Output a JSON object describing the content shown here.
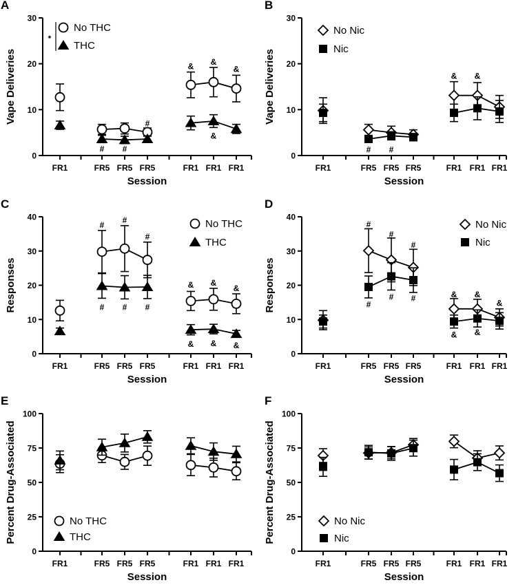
{
  "figure": {
    "colors": {
      "line": "#000000",
      "open_fill": "#ffffff",
      "filled": "#000000"
    }
  },
  "chart_data": [
    {
      "panel": "A",
      "type": "line",
      "ylabel": "Vape Deliveries",
      "xlabel": "Session",
      "categories": [
        "FR1",
        "FR5",
        "FR5",
        "FR5",
        "FR1",
        "FR1",
        "FR1"
      ],
      "ylim": [
        0,
        30
      ],
      "yticks": [
        0,
        10,
        20,
        30
      ],
      "legend": {
        "position": "top-left",
        "bracket_annotation": "*"
      },
      "series": [
        {
          "name": "No THC",
          "marker": "open-circle",
          "values": [
            12.7,
            5.7,
            5.9,
            5.1,
            15.4,
            16.0,
            14.6
          ],
          "errors": [
            2.9,
            1.1,
            1.2,
            0.9,
            2.8,
            3.2,
            2.9
          ]
        },
        {
          "name": "THC",
          "marker": "filled-triangle",
          "values": [
            6.6,
            3.6,
            3.4,
            3.6,
            7.1,
            7.5,
            5.8
          ],
          "errors": [
            0.9,
            0.8,
            0.8,
            0.7,
            1.5,
            1.4,
            1.0
          ]
        }
      ],
      "annotations": [
        {
          "text": "#",
          "index": 3,
          "y": 7.0
        },
        {
          "text": "#",
          "index": 1,
          "y": 1.4
        },
        {
          "text": "#",
          "index": 2,
          "y": 1.4
        },
        {
          "text": "&",
          "index": 4,
          "y": 19.4
        },
        {
          "text": "&",
          "index": 5,
          "y": 20.4
        },
        {
          "text": "&",
          "index": 6,
          "y": 18.8
        },
        {
          "text": "&",
          "index": 5,
          "y": 4.3
        }
      ]
    },
    {
      "panel": "B",
      "type": "line",
      "ylabel": "Vape Deliveries",
      "xlabel": "Session",
      "categories": [
        "FR1",
        "FR5",
        "FR5",
        "FR5",
        "FR1",
        "FR1",
        "FR1"
      ],
      "ylim": [
        0,
        30
      ],
      "yticks": [
        0,
        10,
        20,
        30
      ],
      "legend": {
        "position": "top-left"
      },
      "series": [
        {
          "name": "No Nic",
          "marker": "open-diamond",
          "values": [
            9.8,
            5.6,
            5.0,
            4.6,
            13.1,
            13.1,
            10.6
          ],
          "errors": [
            2.8,
            1.2,
            1.4,
            1.0,
            3.0,
            2.8,
            2.5
          ]
        },
        {
          "name": "Nic",
          "marker": "filled-square",
          "values": [
            9.3,
            3.6,
            4.3,
            4.0,
            9.3,
            10.3,
            9.6
          ],
          "errors": [
            1.9,
            0.7,
            0.9,
            0.8,
            1.9,
            2.5,
            2.4
          ]
        }
      ],
      "annotations": [
        {
          "text": "#",
          "index": 1,
          "y": 1.3
        },
        {
          "text": "#",
          "index": 2,
          "y": 1.3
        },
        {
          "text": "&",
          "index": 4,
          "y": 17.3
        },
        {
          "text": "&",
          "index": 5,
          "y": 17.3
        }
      ]
    },
    {
      "panel": "C",
      "type": "line",
      "ylabel": "Responses",
      "xlabel": "Session",
      "categories": [
        "FR1",
        "FR5",
        "FR5",
        "FR5",
        "FR1",
        "FR1",
        "FR1"
      ],
      "ylim": [
        0,
        40
      ],
      "yticks": [
        0,
        10,
        20,
        30,
        40
      ],
      "legend": {
        "position": "top-right"
      },
      "series": [
        {
          "name": "No THC",
          "marker": "open-circle",
          "values": [
            12.6,
            29.8,
            30.7,
            27.4,
            15.4,
            15.9,
            14.6
          ],
          "errors": [
            3.0,
            6.2,
            6.7,
            5.2,
            2.8,
            3.2,
            2.9
          ]
        },
        {
          "name": "THC",
          "marker": "filled-triangle",
          "values": [
            6.6,
            19.8,
            19.4,
            19.5,
            7.0,
            7.2,
            5.8
          ],
          "errors": [
            0.9,
            3.6,
            3.4,
            3.4,
            1.5,
            1.4,
            1.0
          ]
        }
      ],
      "annotations": [
        {
          "text": "#",
          "index": 1,
          "y": 37.6
        },
        {
          "text": "#",
          "index": 2,
          "y": 39.0
        },
        {
          "text": "#",
          "index": 3,
          "y": 34.2
        },
        {
          "text": "#",
          "index": 1,
          "y": 13.6
        },
        {
          "text": "#",
          "index": 2,
          "y": 13.6
        },
        {
          "text": "#",
          "index": 3,
          "y": 13.6
        },
        {
          "text": "&",
          "index": 4,
          "y": 20.1
        },
        {
          "text": "&",
          "index": 5,
          "y": 20.7
        },
        {
          "text": "&",
          "index": 6,
          "y": 19.1
        },
        {
          "text": "&",
          "index": 4,
          "y": 2.8
        },
        {
          "text": "&",
          "index": 5,
          "y": 3.0
        },
        {
          "text": "&",
          "index": 6,
          "y": 2.4
        }
      ]
    },
    {
      "panel": "D",
      "type": "line",
      "ylabel": "Responses",
      "xlabel": "Session",
      "categories": [
        "FR1",
        "FR5",
        "FR5",
        "FR5",
        "FR1",
        "FR1",
        "FR1"
      ],
      "ylim": [
        0,
        40
      ],
      "yticks": [
        0,
        10,
        20,
        30,
        40
      ],
      "legend": {
        "position": "top-right"
      },
      "series": [
        {
          "name": "No Nic",
          "marker": "open-diamond",
          "values": [
            9.8,
            30.1,
            27.4,
            25.2,
            13.1,
            13.1,
            10.6
          ],
          "errors": [
            2.8,
            6.4,
            6.4,
            5.3,
            3.0,
            2.8,
            2.5
          ]
        },
        {
          "name": "Nic",
          "marker": "filled-square",
          "values": [
            9.4,
            19.5,
            22.6,
            21.5,
            9.4,
            10.3,
            9.6
          ],
          "errors": [
            1.9,
            3.2,
            4.0,
            3.6,
            1.9,
            2.5,
            2.4
          ]
        }
      ],
      "annotations": [
        {
          "text": "#",
          "index": 1,
          "y": 37.8
        },
        {
          "text": "#",
          "index": 2,
          "y": 34.9
        },
        {
          "text": "#",
          "index": 3,
          "y": 31.8
        },
        {
          "text": "#",
          "index": 1,
          "y": 14.4
        },
        {
          "text": "#",
          "index": 2,
          "y": 16.6
        },
        {
          "text": "#",
          "index": 3,
          "y": 16.2
        },
        {
          "text": "&",
          "index": 4,
          "y": 17.3
        },
        {
          "text": "&",
          "index": 5,
          "y": 17.3
        },
        {
          "text": "&",
          "index": 6,
          "y": 14.8
        },
        {
          "text": "&",
          "index": 4,
          "y": 5.5
        },
        {
          "text": "&",
          "index": 5,
          "y": 6.2
        }
      ]
    },
    {
      "panel": "E",
      "type": "line",
      "ylabel": "Percent Drug-Associated",
      "xlabel": "Session",
      "categories": [
        "FR1",
        "FR5",
        "FR5",
        "FR5",
        "FR1",
        "FR1",
        "FR1"
      ],
      "ylim": [
        0,
        100
      ],
      "yticks": [
        0,
        25,
        50,
        75,
        100
      ],
      "legend": {
        "position": "bottom-left"
      },
      "series": [
        {
          "name": "No THC",
          "marker": "open-circle",
          "values": [
            63.6,
            69.6,
            64.9,
            69.4,
            62.6,
            60.8,
            58.1
          ],
          "errors": [
            6.5,
            5.2,
            5.4,
            7.0,
            7.7,
            6.8,
            6.2
          ]
        },
        {
          "name": "THC",
          "marker": "filled-triangle",
          "values": [
            66.0,
            75.6,
            78.6,
            83.1,
            76.6,
            72.4,
            70.6
          ],
          "errors": [
            6.8,
            5.8,
            6.5,
            4.5,
            5.8,
            6.3,
            5.7
          ]
        }
      ]
    },
    {
      "panel": "F",
      "type": "line",
      "ylabel": "Percent Drug-Associated",
      "xlabel": "Session",
      "categories": [
        "FR1",
        "FR5",
        "FR5",
        "FR5",
        "FR1",
        "FR1",
        "FR1"
      ],
      "ylim": [
        0,
        100
      ],
      "yticks": [
        0,
        25,
        50,
        75,
        100
      ],
      "legend": {
        "position": "bottom-left"
      },
      "series": [
        {
          "name": "No Nic",
          "marker": "open-diamond",
          "values": [
            69.5,
            71.4,
            71.6,
            77.3,
            79.8,
            67.7,
            71.4
          ],
          "errors": [
            5.0,
            4.4,
            4.4,
            4.6,
            4.6,
            5.3,
            5.1
          ]
        },
        {
          "name": "Nic",
          "marker": "filled-square",
          "values": [
            61.3,
            71.9,
            71.1,
            74.9,
            59.3,
            64.7,
            56.7
          ],
          "errors": [
            6.9,
            5.0,
            5.0,
            5.8,
            7.4,
            6.1,
            6.0
          ]
        }
      ]
    }
  ]
}
